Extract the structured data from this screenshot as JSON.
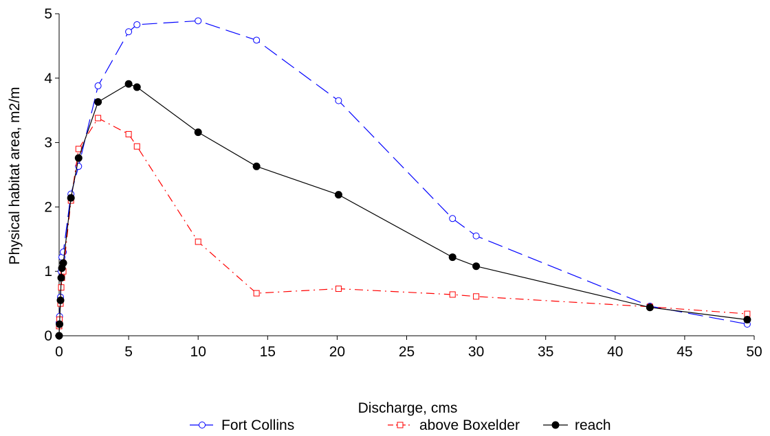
{
  "chart_data": {
    "type": "line",
    "title": "",
    "xlabel": "Discharge, cms",
    "ylabel": "Physical habitat area, m2/m",
    "xlim": [
      0,
      50
    ],
    "ylim": [
      0,
      5
    ],
    "xticks": [
      0,
      5,
      10,
      15,
      20,
      25,
      30,
      35,
      40,
      45,
      50
    ],
    "yticks": [
      0,
      1,
      2,
      3,
      4,
      5
    ],
    "grid": false,
    "legend_position": "bottom",
    "series": [
      {
        "name": "Fort Collins",
        "color": "#0000ff",
        "marker": "open-circle",
        "line_style": "long-dash",
        "x": [
          0,
          0.03,
          0.1,
          0.15,
          0.2,
          0.3,
          0.85,
          1.4,
          2.8,
          5,
          5.6,
          10,
          14.2,
          20.1,
          28.3,
          30,
          42.5,
          49.5
        ],
        "y": [
          0.2,
          0.3,
          0.6,
          1.0,
          1.22,
          1.3,
          2.2,
          2.63,
          3.88,
          4.72,
          4.83,
          4.89,
          4.59,
          3.65,
          1.82,
          1.55,
          0.46,
          0.18
        ]
      },
      {
        "name": "above Boxelder",
        "color": "#ff0000",
        "marker": "open-square",
        "line_style": "dash-dot",
        "x": [
          0,
          0.03,
          0.1,
          0.15,
          0.2,
          0.3,
          0.85,
          1.4,
          2.8,
          5,
          5.6,
          10,
          14.2,
          20.1,
          28.3,
          30,
          42.5,
          49.5
        ],
        "y": [
          0.15,
          0.25,
          0.5,
          0.75,
          0.9,
          1.0,
          2.1,
          2.9,
          3.38,
          3.13,
          2.94,
          1.46,
          0.66,
          0.73,
          0.64,
          0.61,
          0.45,
          0.34
        ]
      },
      {
        "name": "reach",
        "color": "#000000",
        "marker": "filled-circle",
        "line_style": "solid",
        "x": [
          0,
          0.03,
          0.1,
          0.15,
          0.2,
          0.3,
          0.85,
          1.4,
          2.8,
          5,
          5.6,
          10,
          14.2,
          20.1,
          28.3,
          30,
          42.5,
          49.5
        ],
        "y": [
          0,
          0.18,
          0.55,
          0.9,
          1.05,
          1.13,
          2.14,
          2.76,
          3.63,
          3.91,
          3.86,
          3.16,
          2.63,
          2.19,
          1.22,
          1.08,
          0.44,
          0.25
        ]
      }
    ]
  }
}
